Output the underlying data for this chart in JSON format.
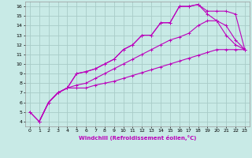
{
  "xlabel": "Windchill (Refroidissement éolien,°C)",
  "bg_color": "#c8eae6",
  "grid_color": "#a8ccc8",
  "line_color": "#bb00bb",
  "xlim": [
    -0.5,
    23.5
  ],
  "ylim": [
    3.5,
    16.5
  ],
  "xticks": [
    0,
    1,
    2,
    3,
    4,
    5,
    6,
    7,
    8,
    9,
    10,
    11,
    12,
    13,
    14,
    15,
    16,
    17,
    18,
    19,
    20,
    21,
    22,
    23
  ],
  "yticks": [
    4,
    5,
    6,
    7,
    8,
    9,
    10,
    11,
    12,
    13,
    14,
    15,
    16
  ],
  "lines": [
    {
      "x": [
        0,
        1,
        2,
        3,
        4,
        5,
        6,
        7,
        8,
        9,
        10,
        11,
        12,
        13,
        14,
        15,
        16,
        17,
        18,
        19,
        20,
        21,
        22,
        23
      ],
      "y": [
        5,
        4,
        6,
        7,
        7.5,
        7.5,
        7.5,
        7.8,
        8.0,
        8.2,
        8.5,
        8.8,
        9.1,
        9.4,
        9.7,
        10.0,
        10.3,
        10.6,
        10.9,
        11.2,
        11.5,
        11.5,
        11.5,
        11.5
      ]
    },
    {
      "x": [
        0,
        1,
        2,
        3,
        4,
        5,
        6,
        7,
        8,
        9,
        10,
        11,
        12,
        13,
        14,
        15,
        16,
        17,
        18,
        19,
        20,
        21,
        22,
        23
      ],
      "y": [
        5,
        4,
        6,
        7,
        7.5,
        7.8,
        8.0,
        8.5,
        9.0,
        9.5,
        10.0,
        10.5,
        11.0,
        11.5,
        12.0,
        12.5,
        12.8,
        13.2,
        14.0,
        14.5,
        14.5,
        14.0,
        12.5,
        11.5
      ]
    },
    {
      "x": [
        1,
        2,
        3,
        4,
        5,
        6,
        7,
        8,
        9,
        10,
        11,
        12,
        13,
        14,
        15,
        16,
        17,
        18,
        19,
        20,
        21,
        22,
        23
      ],
      "y": [
        4,
        6,
        7,
        7.5,
        9.0,
        9.2,
        9.5,
        10.0,
        10.5,
        11.5,
        12.0,
        13.0,
        13.0,
        14.3,
        14.3,
        16.0,
        16.0,
        16.2,
        15.2,
        14.5,
        13.0,
        12.0,
        11.5
      ]
    },
    {
      "x": [
        1,
        2,
        3,
        4,
        5,
        6,
        7,
        8,
        9,
        10,
        11,
        12,
        13,
        14,
        15,
        16,
        17,
        18,
        19,
        20,
        21,
        22,
        23
      ],
      "y": [
        4,
        6,
        7,
        7.5,
        9.0,
        9.2,
        9.5,
        10.0,
        10.5,
        11.5,
        12.0,
        13.0,
        13.0,
        14.3,
        14.3,
        16.0,
        16.0,
        16.2,
        15.5,
        15.5,
        15.5,
        15.2,
        11.5
      ]
    }
  ]
}
